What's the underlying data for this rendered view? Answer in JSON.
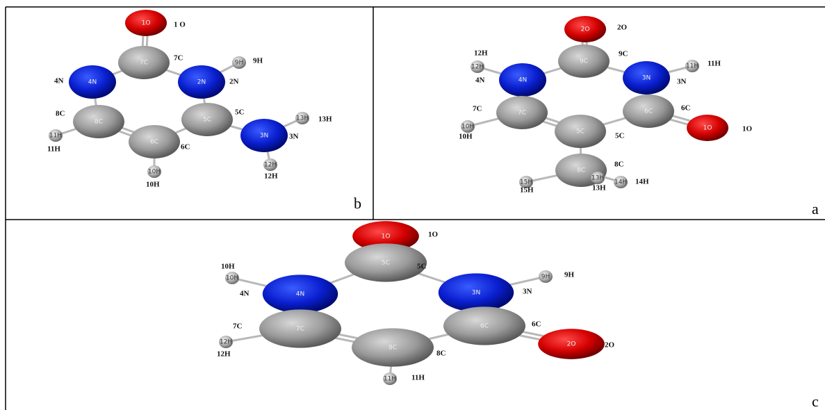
{
  "panels": [
    {
      "label": "b",
      "atoms": [
        {
          "symbol": "1O",
          "tag": "1 O"
        },
        {
          "symbol": "7C",
          "tag": "7C"
        },
        {
          "symbol": "9H",
          "tag": "9H"
        },
        {
          "symbol": "4N",
          "tag": "4N"
        },
        {
          "symbol": "2N",
          "tag": "2N"
        },
        {
          "symbol": "8C",
          "tag": "8C"
        },
        {
          "symbol": "5C",
          "tag": "5C"
        },
        {
          "symbol": "13H",
          "tag": "13H"
        },
        {
          "symbol": "11H",
          "tag": "11H"
        },
        {
          "symbol": "6C",
          "tag": "6C"
        },
        {
          "symbol": "3N",
          "tag": "3N"
        },
        {
          "symbol": "10H",
          "tag": "10H"
        },
        {
          "symbol": "12H",
          "tag": "12H"
        }
      ]
    },
    {
      "label": "a",
      "atoms": [
        {
          "symbol": "2O",
          "tag": "2O"
        },
        {
          "symbol": "12H",
          "tag": "12H"
        },
        {
          "symbol": "9C",
          "tag": "9C"
        },
        {
          "symbol": "11H",
          "tag": "11H"
        },
        {
          "symbol": "4N",
          "tag": "4N"
        },
        {
          "symbol": "3N",
          "tag": "3N"
        },
        {
          "symbol": "7C",
          "tag": "7C"
        },
        {
          "symbol": "6C",
          "tag": "6C"
        },
        {
          "symbol": "10H",
          "tag": "10H"
        },
        {
          "symbol": "5C",
          "tag": "5C"
        },
        {
          "symbol": "1O",
          "tag": "1O"
        },
        {
          "symbol": "8C",
          "tag": "8C"
        },
        {
          "symbol": "15H",
          "tag": "15H"
        },
        {
          "symbol": "13H",
          "tag": "13H"
        },
        {
          "symbol": "14H",
          "tag": "14H"
        }
      ]
    },
    {
      "label": "c",
      "atoms": [
        {
          "symbol": "1O",
          "tag": "1O"
        },
        {
          "symbol": "10H",
          "tag": "10H"
        },
        {
          "symbol": "5C",
          "tag": "5C"
        },
        {
          "symbol": "9H",
          "tag": "9H"
        },
        {
          "symbol": "4N",
          "tag": "4N"
        },
        {
          "symbol": "3N",
          "tag": "3N"
        },
        {
          "symbol": "7C",
          "tag": "7C"
        },
        {
          "symbol": "6C",
          "tag": "6C"
        },
        {
          "symbol": "12H",
          "tag": "12H"
        },
        {
          "symbol": "8C",
          "tag": "8C"
        },
        {
          "symbol": "2O",
          "tag": "2O"
        },
        {
          "symbol": "11H",
          "tag": "11H"
        }
      ]
    }
  ]
}
